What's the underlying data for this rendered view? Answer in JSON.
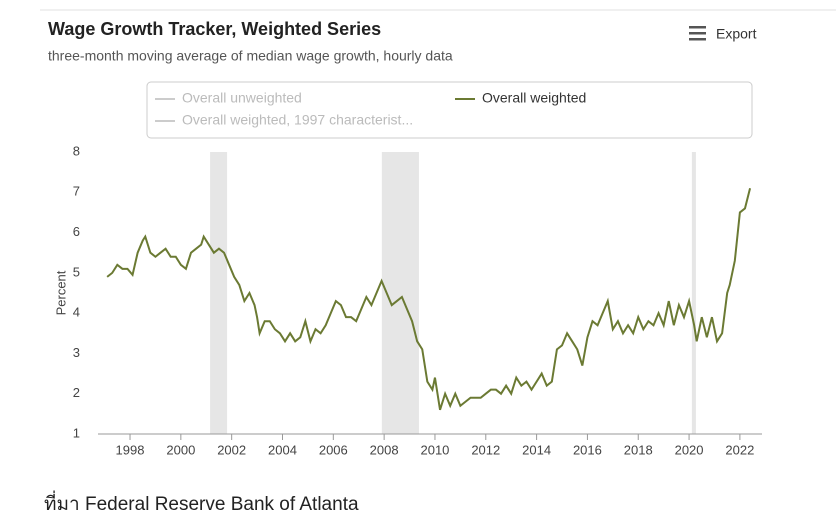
{
  "chart_data": {
    "type": "line",
    "title": "Wage Growth Tracker, Weighted Series",
    "subtitle": "three-month moving average of median wage growth, hourly data",
    "export_label": "Export",
    "y_label": "Percent",
    "source": "ที่มา Federal Reserve Bank of Atlanta",
    "legend": [
      {
        "name": "Overall unweighted",
        "color": "#cccccc",
        "visible": false
      },
      {
        "name": "Overall weighted",
        "color": "#6b7a33",
        "visible": true
      },
      {
        "name": "Overall weighted, 1997 characterist...",
        "color": "#cccccc",
        "visible": false
      }
    ],
    "shaded_regions": [
      [
        2001.15,
        2001.82
      ],
      [
        2007.91,
        2009.37
      ],
      [
        2020.11,
        2020.27
      ]
    ],
    "shade_color": "#e6e6e6",
    "xlim": [
      1996.74,
      2022.87
    ],
    "ylim": [
      1,
      8
    ],
    "xticks": [
      1998,
      2000,
      2002,
      2004,
      2006,
      2008,
      2010,
      2012,
      2014,
      2016,
      2018,
      2020,
      2022
    ],
    "yticks": [
      1,
      2,
      3,
      4,
      5,
      6,
      7,
      8
    ],
    "x": [
      1997.1,
      1997.3,
      1997.5,
      1997.7,
      1997.9,
      1998.1,
      1998.3,
      1998.5,
      1998.6,
      1998.8,
      1999.0,
      1999.2,
      1999.4,
      1999.6,
      1999.8,
      2000.0,
      2000.2,
      2000.4,
      2000.6,
      2000.8,
      2000.9,
      2001.1,
      2001.3,
      2001.5,
      2001.7,
      2001.9,
      2002.1,
      2002.3,
      2002.5,
      2002.7,
      2002.9,
      2003.0,
      2003.1,
      2003.3,
      2003.5,
      2003.7,
      2003.9,
      2004.1,
      2004.3,
      2004.5,
      2004.7,
      2004.9,
      2005.1,
      2005.3,
      2005.5,
      2005.7,
      2005.9,
      2006.1,
      2006.3,
      2006.5,
      2006.7,
      2006.9,
      2007.1,
      2007.3,
      2007.5,
      2007.7,
      2007.9,
      2008.1,
      2008.3,
      2008.5,
      2008.7,
      2008.9,
      2009.1,
      2009.3,
      2009.5,
      2009.7,
      2009.9,
      2010.0,
      2010.2,
      2010.4,
      2010.6,
      2010.8,
      2011.0,
      2011.2,
      2011.4,
      2011.6,
      2011.8,
      2012.0,
      2012.2,
      2012.4,
      2012.6,
      2012.8,
      2013.0,
      2013.2,
      2013.4,
      2013.6,
      2013.8,
      2014.0,
      2014.2,
      2014.4,
      2014.6,
      2014.8,
      2015.0,
      2015.2,
      2015.4,
      2015.6,
      2015.8,
      2016.0,
      2016.2,
      2016.4,
      2016.6,
      2016.8,
      2017.0,
      2017.2,
      2017.4,
      2017.6,
      2017.8,
      2018.0,
      2018.2,
      2018.4,
      2018.6,
      2018.8,
      2019.0,
      2019.2,
      2019.4,
      2019.6,
      2019.8,
      2020.0,
      2020.2,
      2020.3,
      2020.5,
      2020.7,
      2020.9,
      2021.1,
      2021.3,
      2021.5,
      2021.6,
      2021.8,
      2022.0,
      2022.2,
      2022.4
    ],
    "series": [
      {
        "name": "Overall weighted",
        "color": "#6b7a33",
        "values": [
          4.9,
          5.0,
          5.2,
          5.1,
          5.1,
          4.95,
          5.5,
          5.8,
          5.9,
          5.5,
          5.4,
          5.5,
          5.6,
          5.4,
          5.4,
          5.2,
          5.1,
          5.5,
          5.6,
          5.7,
          5.9,
          5.7,
          5.5,
          5.6,
          5.5,
          5.2,
          4.9,
          4.7,
          4.3,
          4.5,
          4.2,
          3.9,
          3.5,
          3.8,
          3.8,
          3.6,
          3.5,
          3.3,
          3.5,
          3.3,
          3.4,
          3.8,
          3.3,
          3.6,
          3.5,
          3.7,
          4.0,
          4.3,
          4.2,
          3.9,
          3.9,
          3.8,
          4.1,
          4.4,
          4.2,
          4.5,
          4.8,
          4.5,
          4.2,
          4.3,
          4.4,
          4.1,
          3.8,
          3.3,
          3.1,
          2.3,
          2.1,
          2.4,
          1.6,
          2.0,
          1.7,
          2.0,
          1.7,
          1.8,
          1.9,
          1.9,
          1.9,
          2.0,
          2.1,
          2.1,
          2.0,
          2.2,
          2.0,
          2.4,
          2.2,
          2.3,
          2.1,
          2.3,
          2.5,
          2.2,
          2.3,
          3.1,
          3.2,
          3.5,
          3.3,
          3.1,
          2.7,
          3.4,
          3.8,
          3.7,
          4.0,
          4.3,
          3.6,
          3.8,
          3.5,
          3.7,
          3.5,
          3.9,
          3.6,
          3.8,
          3.7,
          4.0,
          3.7,
          4.3,
          3.7,
          4.2,
          3.9,
          4.3,
          3.7,
          3.3,
          3.9,
          3.4,
          3.9,
          3.3,
          3.5,
          4.5,
          4.7,
          5.3,
          6.5,
          6.6,
          7.1
        ]
      }
    ]
  }
}
